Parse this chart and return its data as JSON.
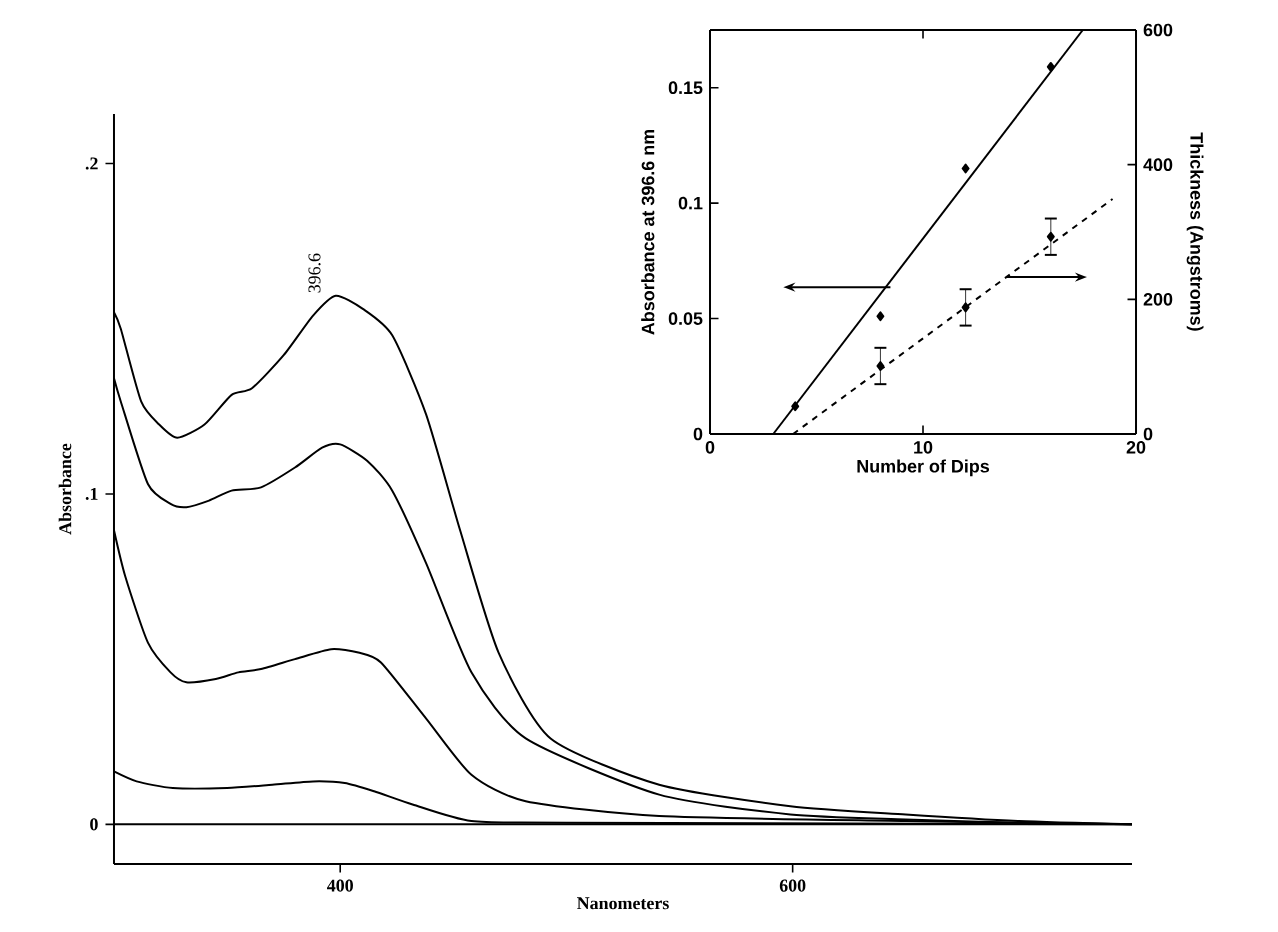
{
  "chart_data": [
    {
      "type": "line",
      "xlabel": "Nanometers",
      "ylabel": "Absorbance",
      "xlim": [
        300,
        750
      ],
      "xticks": [
        400,
        600
      ],
      "ylim": [
        -0.012,
        0.215
      ],
      "yticks": [
        0,
        {
          "value": 0.1,
          "label": ".1"
        },
        {
          "value": 0.2,
          "label": ".2"
        }
      ],
      "ref_lines": [
        {
          "axis": "y",
          "value": 0
        }
      ],
      "annotations": [
        {
          "text": "396.6",
          "x": 396.6,
          "y": 0.16
        }
      ],
      "series": [
        {
          "color": "#000000",
          "x": [
            300,
            303,
            312,
            320,
            328,
            340,
            352,
            361,
            375,
            388,
            398,
            410,
            423,
            438,
            453,
            470,
            493,
            541,
            599,
            650,
            700,
            750
          ],
          "values": [
            0.155,
            0.15,
            0.128,
            0.121,
            0.117,
            0.121,
            0.13,
            0.132,
            0.142,
            0.154,
            0.16,
            0.156,
            0.148,
            0.124,
            0.089,
            0.052,
            0.026,
            0.012,
            0.0055,
            0.003,
            0.001,
            0
          ]
        },
        {
          "color": "#000000",
          "x": [
            300,
            303,
            315,
            325,
            332,
            342,
            352,
            365,
            380,
            392,
            400,
            412,
            423,
            438,
            458,
            482,
            541,
            599,
            650,
            700,
            750
          ],
          "values": [
            0.135,
            0.128,
            0.103,
            0.097,
            0.096,
            0.098,
            0.101,
            0.102,
            0.108,
            0.114,
            0.115,
            0.11,
            0.101,
            0.079,
            0.046,
            0.026,
            0.009,
            0.003,
            0.0015,
            0.0005,
            0
          ]
        },
        {
          "color": "#000000",
          "x": [
            300,
            305,
            315,
            325,
            332,
            345,
            355,
            365,
            380,
            396,
            408,
            418,
            438,
            458,
            482,
            541,
            650,
            750
          ],
          "values": [
            0.089,
            0.075,
            0.055,
            0.046,
            0.043,
            0.044,
            0.046,
            0.047,
            0.05,
            0.053,
            0.052,
            0.049,
            0.032,
            0.015,
            0.007,
            0.0025,
            0.001,
            0
          ]
        },
        {
          "color": "#000000",
          "x": [
            300,
            310,
            326,
            350,
            370,
            388,
            402,
            415,
            432,
            458,
            500,
            750
          ],
          "values": [
            0.016,
            0.013,
            0.011,
            0.011,
            0.012,
            0.013,
            0.0125,
            0.01,
            0.006,
            0.001,
            0.0005,
            0
          ]
        }
      ]
    },
    {
      "type": "scatter",
      "xlabel": "Number of Dips",
      "ylabel": "Absorbance at 396.6 nm",
      "y2label": "Thickness  (Angstroms)",
      "xlim": [
        0,
        20
      ],
      "xticks": [
        0,
        10,
        20
      ],
      "ylim": [
        0,
        0.175
      ],
      "yticks": [
        0,
        0.05,
        0.1,
        0.15
      ],
      "y2lim": [
        0,
        600
      ],
      "y2ticks": [
        0,
        200,
        400,
        600
      ],
      "series": [
        {
          "color": "#000000",
          "marker": "diamond",
          "x": [
            4,
            8,
            12,
            16
          ],
          "values": [
            0.012,
            0.051,
            0.115,
            0.159
          ]
        },
        {
          "type": "line",
          "color": "#000000",
          "line_style": "solid",
          "x": [
            2.97,
            17.5
          ],
          "values": [
            0,
            0.175
          ]
        },
        {
          "color": "#000000",
          "marker": "diamond",
          "axis": "y2",
          "x": [
            8,
            12,
            16
          ],
          "values": [
            101,
            188,
            293
          ],
          "errors": [
            27,
            27,
            27
          ]
        },
        {
          "type": "line",
          "color": "#000000",
          "line_style": "dashed",
          "axis": "y2",
          "x": [
            3.9,
            18.9
          ],
          "values": [
            0,
            349
          ]
        }
      ]
    }
  ]
}
